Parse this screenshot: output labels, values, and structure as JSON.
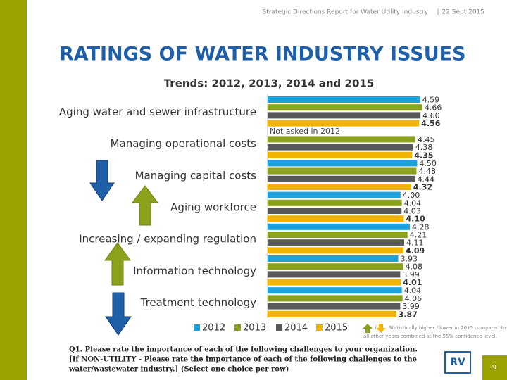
{
  "header": {
    "report": "Strategic Directions Report for Water Utility Industry",
    "separator": "|",
    "date": "22 Sept 2015"
  },
  "title": "RATINGS OF WATER INDUSTRY ISSUES",
  "chart_data": {
    "type": "bar",
    "orientation": "horizontal",
    "title": "Trends: 2012, 2013, 2014 and 2015",
    "categories": [
      "Aging water and sewer infrastructure",
      "Managing operational costs",
      "Managing capital costs",
      "Aging workforce",
      "Increasing / expanding regulation",
      "Information technology",
      "Treatment technology"
    ],
    "series": [
      {
        "name": "2012",
        "color": "#1ba1db",
        "values": [
          4.59,
          null,
          4.5,
          4.0,
          4.28,
          3.93,
          4.04
        ],
        "value_labels": [
          "4.59",
          null,
          "4.50",
          "4.00",
          "4.28",
          "3.93",
          "4.04"
        ]
      },
      {
        "name": "2013",
        "color": "#8aa11c",
        "values": [
          4.66,
          4.45,
          4.48,
          4.04,
          4.21,
          4.08,
          4.06
        ],
        "value_labels": [
          "4.66",
          "4.45",
          "4.48",
          "4.04",
          "4.21",
          "4.08",
          "4.06"
        ]
      },
      {
        "name": "2014",
        "color": "#595959",
        "values": [
          4.6,
          4.38,
          4.44,
          4.03,
          4.11,
          3.99,
          3.99
        ],
        "value_labels": [
          "4.60",
          "4.38",
          "4.44",
          "4.03",
          "4.11",
          "3.99",
          "3.99"
        ]
      },
      {
        "name": "2015",
        "color": "#f0b400",
        "values": [
          4.56,
          4.35,
          4.32,
          4.1,
          4.09,
          4.01,
          3.87
        ],
        "value_labels": [
          "4.56",
          "4.35",
          "4.32",
          "4.10",
          "4.09",
          "4.01",
          "3.87"
        ]
      }
    ],
    "xlim": [
      0,
      5
    ],
    "annotation": "Not asked in 2012",
    "legend_note": [
      "Statistically higher / lower in 2015 compared to",
      "all other years combined at the 95% confidence level."
    ]
  },
  "footnote": [
    "Q1. Please rate the importance of each of the following challenges to your organization.",
    "[If NON-UTILITY - Please rate the importance of each of the following challenges to the",
    "water/wastewater industry.] (Select one choice per row)"
  ],
  "page_number": 9
}
